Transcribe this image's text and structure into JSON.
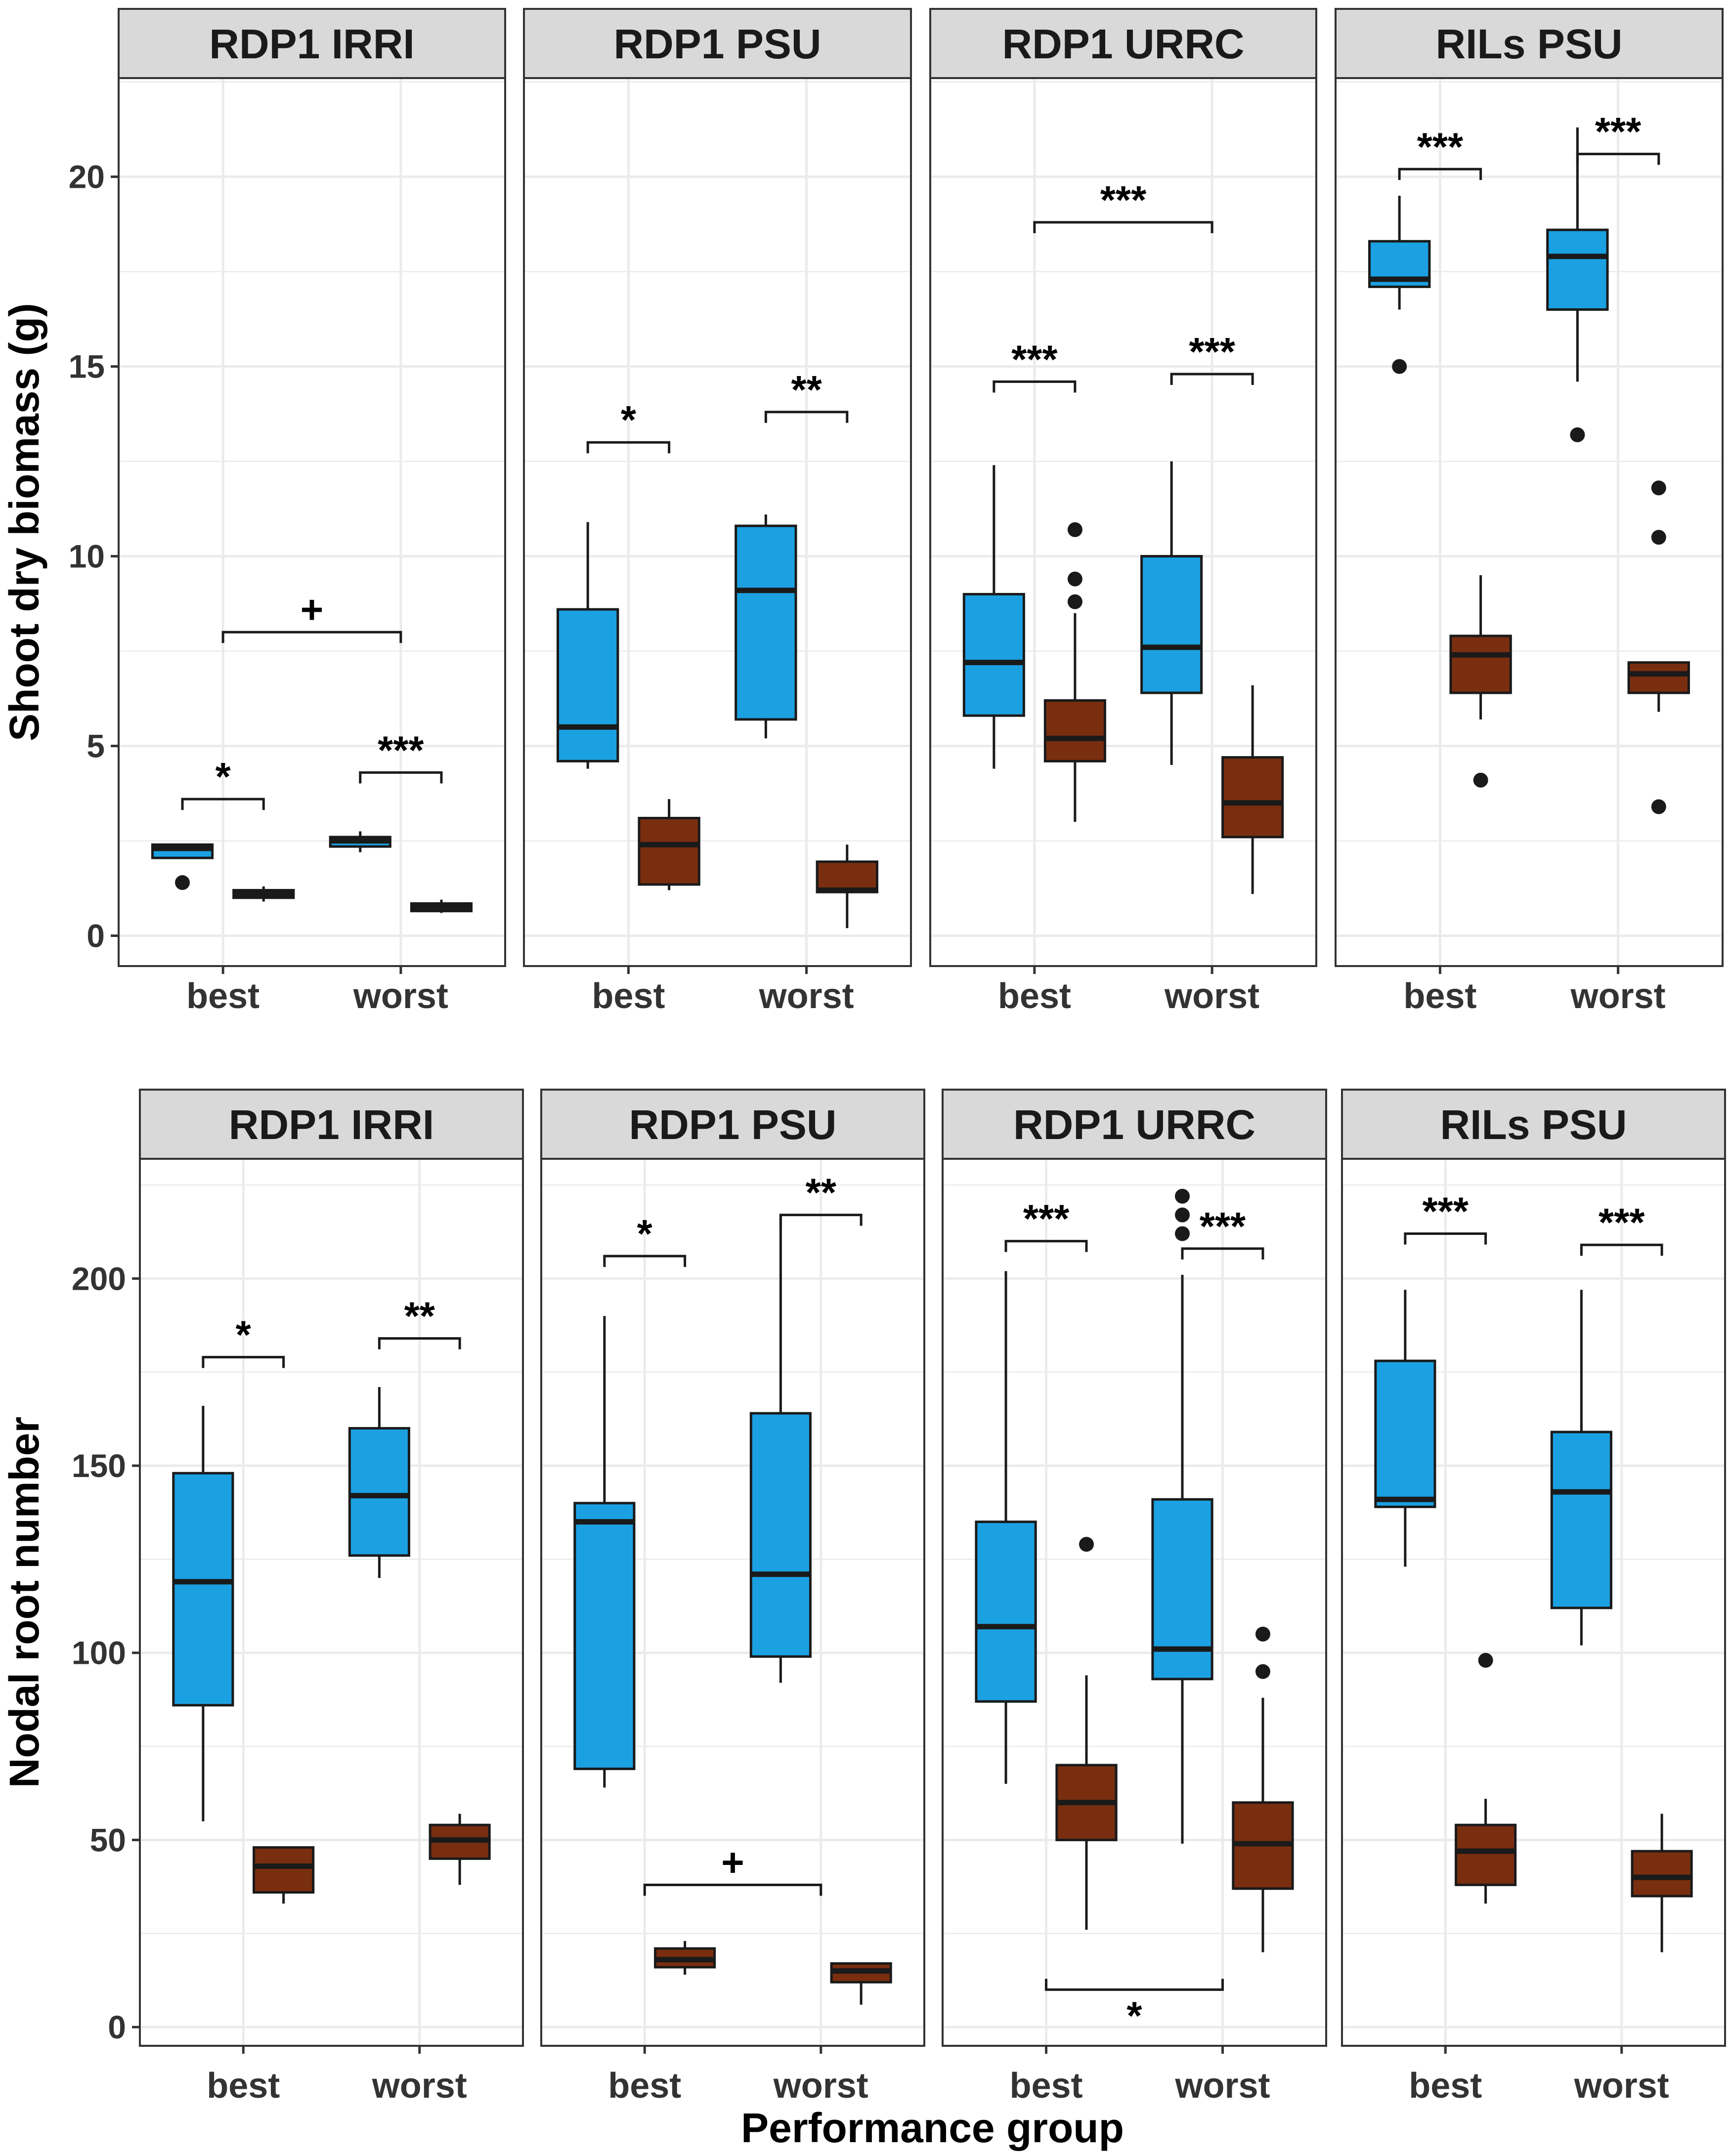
{
  "colors": {
    "blue": "#1ba1e2",
    "brown": "#7a2e10",
    "strip": "#d9d9d9",
    "grid": "#ebebeb",
    "outline": "#1a1a1a"
  },
  "chart_data": [
    {
      "type": "boxplot",
      "ylabel": "Shoot dry biomass (g)",
      "ylim": [
        -0.8,
        22.6
      ],
      "yticks": [
        0,
        5,
        10,
        15,
        20
      ],
      "categories": [
        "best",
        "worst"
      ],
      "panels": [
        {
          "title": "RDP1 IRRI",
          "boxes": [
            {
              "category": "best",
              "color": "blue",
              "q1": 2.05,
              "median": 2.3,
              "q3": 2.4,
              "lo": 2.05,
              "hi": 2.4,
              "outliers": [
                1.4
              ]
            },
            {
              "category": "best",
              "color": "brown",
              "q1": 1.0,
              "median": 1.1,
              "q3": 1.2,
              "lo": 0.9,
              "hi": 1.3,
              "outliers": []
            },
            {
              "category": "worst",
              "color": "blue",
              "q1": 2.35,
              "median": 2.5,
              "q3": 2.6,
              "lo": 2.2,
              "hi": 2.75,
              "outliers": []
            },
            {
              "category": "worst",
              "color": "brown",
              "q1": 0.65,
              "median": 0.75,
              "q3": 0.85,
              "lo": 0.6,
              "hi": 0.95,
              "outliers": []
            }
          ],
          "annotations": [
            {
              "label": "*",
              "from": "best-blue",
              "to": "best-brown",
              "y": 3.6
            },
            {
              "label": "***",
              "from": "worst-blue",
              "to": "worst-brown",
              "y": 4.3
            },
            {
              "label": "+",
              "from": "best",
              "to": "worst",
              "y": 8.0
            }
          ]
        },
        {
          "title": "RDP1 PSU",
          "boxes": [
            {
              "category": "best",
              "color": "blue",
              "q1": 4.6,
              "median": 5.5,
              "q3": 8.6,
              "lo": 4.4,
              "hi": 10.9,
              "outliers": []
            },
            {
              "category": "best",
              "color": "brown",
              "q1": 1.35,
              "median": 2.4,
              "q3": 3.1,
              "lo": 1.2,
              "hi": 3.6,
              "outliers": []
            },
            {
              "category": "worst",
              "color": "blue",
              "q1": 5.7,
              "median": 9.1,
              "q3": 10.8,
              "lo": 5.2,
              "hi": 11.1,
              "outliers": []
            },
            {
              "category": "worst",
              "color": "brown",
              "q1": 1.15,
              "median": 1.2,
              "q3": 1.95,
              "lo": 0.2,
              "hi": 2.4,
              "outliers": []
            }
          ],
          "annotations": [
            {
              "label": "*",
              "from": "best-blue",
              "to": "best-brown",
              "y": 13.0
            },
            {
              "label": "**",
              "from": "worst-blue",
              "to": "worst-brown",
              "y": 13.8
            }
          ]
        },
        {
          "title": "RDP1 URRC",
          "boxes": [
            {
              "category": "best",
              "color": "blue",
              "q1": 5.8,
              "median": 7.2,
              "q3": 9.0,
              "lo": 4.4,
              "hi": 12.4,
              "outliers": []
            },
            {
              "category": "best",
              "color": "brown",
              "q1": 4.6,
              "median": 5.2,
              "q3": 6.2,
              "lo": 3.0,
              "hi": 8.5,
              "outliers": [
                8.8,
                9.4,
                10.7
              ]
            },
            {
              "category": "worst",
              "color": "blue",
              "q1": 6.4,
              "median": 7.6,
              "q3": 10.0,
              "lo": 4.5,
              "hi": 12.5,
              "outliers": []
            },
            {
              "category": "worst",
              "color": "brown",
              "q1": 2.6,
              "median": 3.5,
              "q3": 4.7,
              "lo": 1.1,
              "hi": 6.6,
              "outliers": []
            }
          ],
          "annotations": [
            {
              "label": "***",
              "from": "best-blue",
              "to": "best-brown",
              "y": 14.6
            },
            {
              "label": "***",
              "from": "worst-blue",
              "to": "worst-brown",
              "y": 14.8
            },
            {
              "label": "***",
              "from": "best",
              "to": "worst",
              "y": 18.8
            }
          ]
        },
        {
          "title": "RILs PSU",
          "boxes": [
            {
              "category": "best",
              "color": "blue",
              "q1": 17.1,
              "median": 17.3,
              "q3": 18.3,
              "lo": 16.5,
              "hi": 19.5,
              "outliers": [
                15.0
              ]
            },
            {
              "category": "best",
              "color": "brown",
              "q1": 6.4,
              "median": 7.4,
              "q3": 7.9,
              "lo": 5.7,
              "hi": 9.5,
              "outliers": [
                4.1
              ]
            },
            {
              "category": "worst",
              "color": "blue",
              "q1": 16.5,
              "median": 17.9,
              "q3": 18.6,
              "lo": 14.6,
              "hi": 21.3,
              "outliers": [
                13.2
              ]
            },
            {
              "category": "worst",
              "color": "brown",
              "q1": 6.4,
              "median": 6.9,
              "q3": 7.2,
              "lo": 5.9,
              "hi": 7.2,
              "outliers": [
                3.4,
                10.5,
                11.8
              ]
            }
          ],
          "annotations": [
            {
              "label": "***",
              "from": "best-blue",
              "to": "best-brown",
              "y": 20.2
            },
            {
              "label": "***",
              "from": "worst-blue",
              "to": "worst-brown",
              "y": 20.6
            }
          ]
        }
      ]
    },
    {
      "type": "boxplot",
      "ylabel": "Nodal root number",
      "xlabel": "Performance group",
      "ylim": [
        -5,
        232
      ],
      "yticks": [
        0,
        50,
        100,
        150,
        200
      ],
      "categories": [
        "best",
        "worst"
      ],
      "panels": [
        {
          "title": "RDP1 IRRI",
          "boxes": [
            {
              "category": "best",
              "color": "blue",
              "q1": 86,
              "median": 119,
              "q3": 148,
              "lo": 55,
              "hi": 166,
              "outliers": []
            },
            {
              "category": "best",
              "color": "brown",
              "q1": 36,
              "median": 43,
              "q3": 48,
              "lo": 33,
              "hi": 48,
              "outliers": []
            },
            {
              "category": "worst",
              "color": "blue",
              "q1": 126,
              "median": 142,
              "q3": 160,
              "lo": 120,
              "hi": 171,
              "outliers": []
            },
            {
              "category": "worst",
              "color": "brown",
              "q1": 45,
              "median": 50,
              "q3": 54,
              "lo": 38,
              "hi": 57,
              "outliers": []
            }
          ],
          "annotations": [
            {
              "label": "*",
              "from": "best-blue",
              "to": "best-brown",
              "y": 179
            },
            {
              "label": "**",
              "from": "worst-blue",
              "to": "worst-brown",
              "y": 184
            }
          ]
        },
        {
          "title": "RDP1 PSU",
          "boxes": [
            {
              "category": "best",
              "color": "blue",
              "q1": 69,
              "median": 135,
              "q3": 140,
              "lo": 64,
              "hi": 190,
              "outliers": []
            },
            {
              "category": "best",
              "color": "brown",
              "q1": 16,
              "median": 18,
              "q3": 21,
              "lo": 14,
              "hi": 23,
              "outliers": []
            },
            {
              "category": "worst",
              "color": "blue",
              "q1": 99,
              "median": 121,
              "q3": 164,
              "lo": 92,
              "hi": 217,
              "outliers": []
            },
            {
              "category": "worst",
              "color": "brown",
              "q1": 12,
              "median": 15,
              "q3": 17,
              "lo": 6,
              "hi": 17,
              "outliers": []
            }
          ],
          "annotations": [
            {
              "label": "*",
              "from": "best-blue",
              "to": "best-brown",
              "y": 206
            },
            {
              "label": "**",
              "from": "worst-blue",
              "to": "worst-brown",
              "y": 217
            },
            {
              "label": "+",
              "from": "best",
              "to": "worst",
              "y": 38
            }
          ]
        },
        {
          "title": "RDP1 URRC",
          "boxes": [
            {
              "category": "best",
              "color": "blue",
              "q1": 87,
              "median": 107,
              "q3": 135,
              "lo": 65,
              "hi": 202,
              "outliers": []
            },
            {
              "category": "best",
              "color": "brown",
              "q1": 50,
              "median": 60,
              "q3": 70,
              "lo": 26,
              "hi": 94,
              "outliers": [
                129
              ]
            },
            {
              "category": "worst",
              "color": "blue",
              "q1": 93,
              "median": 101,
              "q3": 141,
              "lo": 49,
              "hi": 201,
              "outliers": [
                212,
                217,
                222
              ]
            },
            {
              "category": "worst",
              "color": "brown",
              "q1": 37,
              "median": 49,
              "q3": 60,
              "lo": 20,
              "hi": 88,
              "outliers": [
                95,
                105
              ]
            }
          ],
          "annotations": [
            {
              "label": "***",
              "from": "best-blue",
              "to": "best-brown",
              "y": 210
            },
            {
              "label": "***",
              "from": "worst-blue",
              "to": "worst-brown",
              "y": 208
            },
            {
              "label": "*",
              "from": "best",
              "to": "worst",
              "y": 10
            }
          ]
        },
        {
          "title": "RILs PSU",
          "boxes": [
            {
              "category": "best",
              "color": "blue",
              "q1": 139,
              "median": 141,
              "q3": 178,
              "lo": 123,
              "hi": 197,
              "outliers": []
            },
            {
              "category": "best",
              "color": "brown",
              "q1": 38,
              "median": 47,
              "q3": 54,
              "lo": 33,
              "hi": 61,
              "outliers": [
                98
              ]
            },
            {
              "category": "worst",
              "color": "blue",
              "q1": 112,
              "median": 143,
              "q3": 159,
              "lo": 102,
              "hi": 197,
              "outliers": []
            },
            {
              "category": "worst",
              "color": "brown",
              "q1": 35,
              "median": 40,
              "q3": 47,
              "lo": 20,
              "hi": 57,
              "outliers": []
            }
          ],
          "annotations": [
            {
              "label": "***",
              "from": "best-blue",
              "to": "best-brown",
              "y": 212
            },
            {
              "label": "***",
              "from": "worst-blue",
              "to": "worst-brown",
              "y": 209
            }
          ]
        }
      ]
    }
  ]
}
